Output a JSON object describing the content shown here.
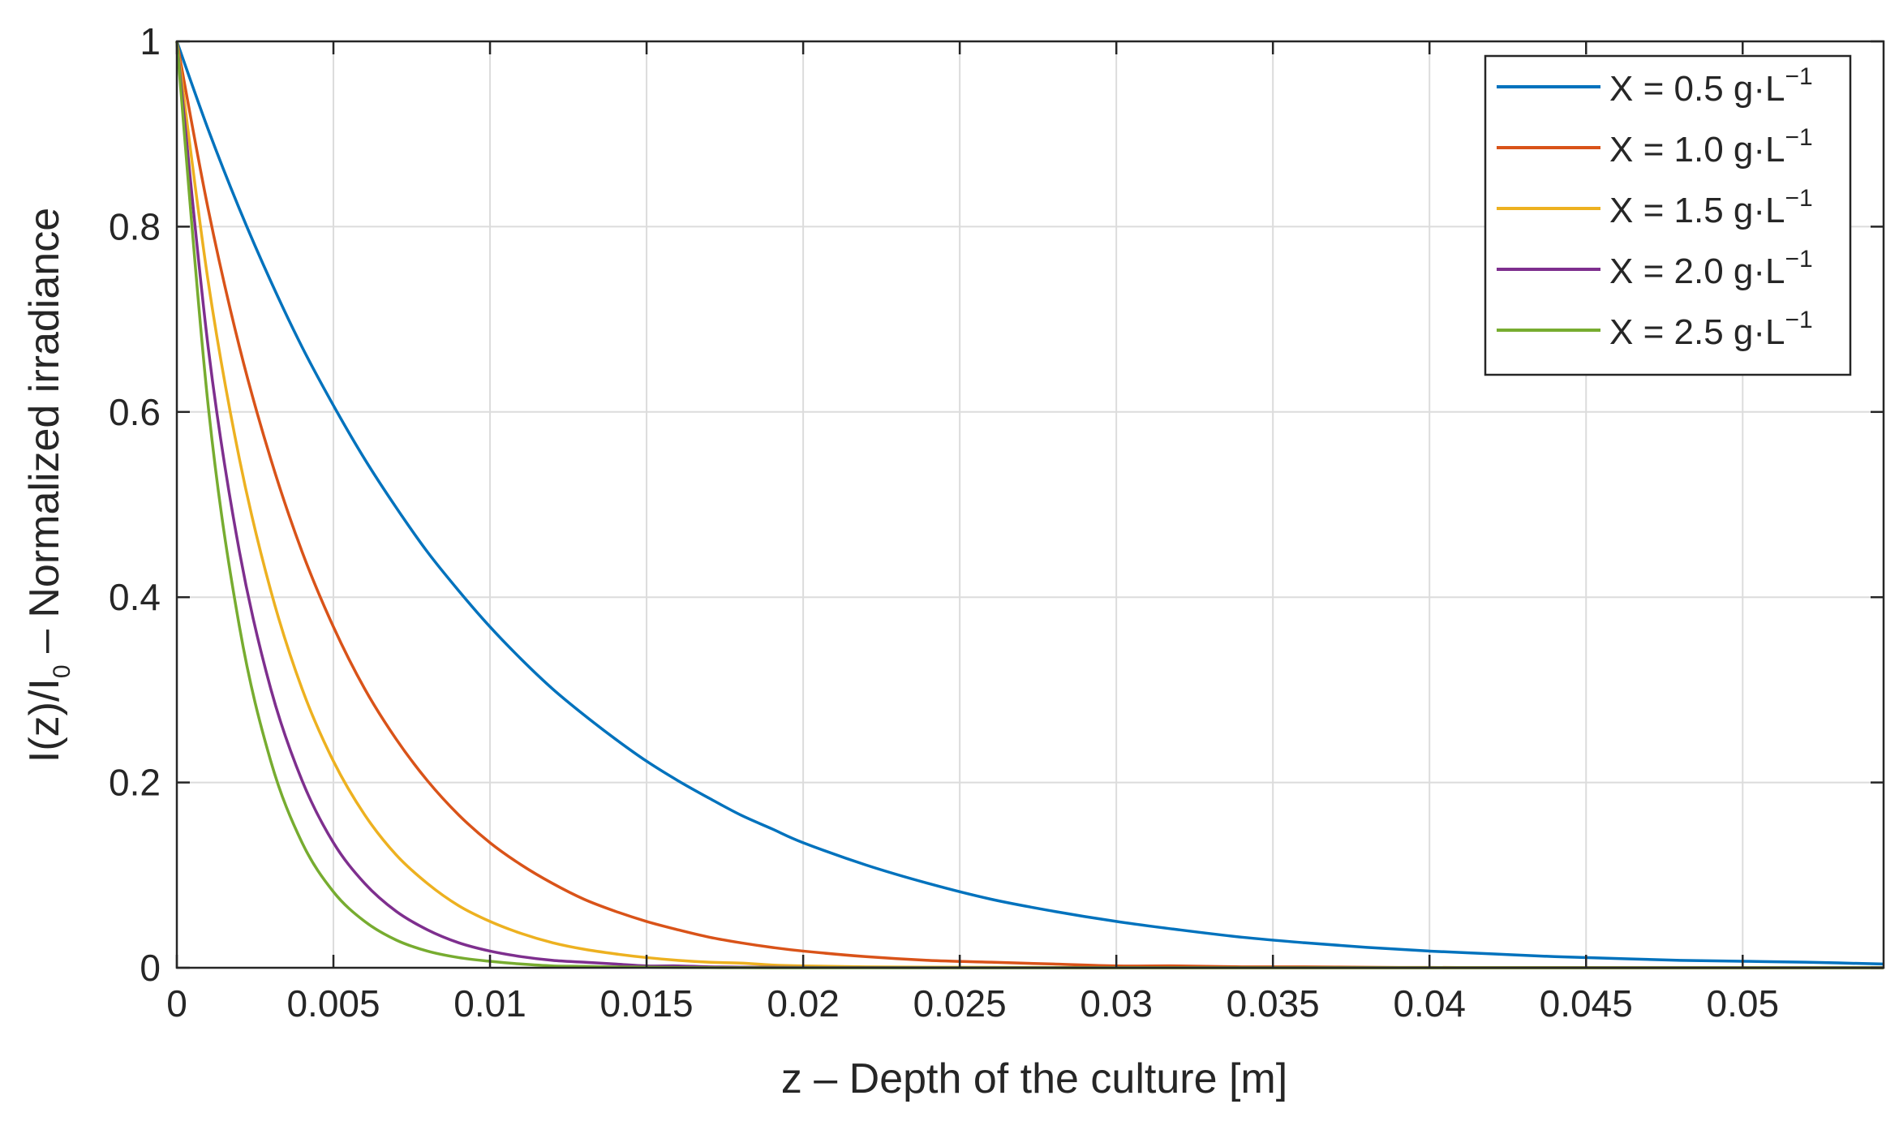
{
  "chart_data": {
    "type": "line",
    "xlabel": "z – Depth of the culture [m]",
    "ylabel_main": "I(z)/I",
    "ylabel_sub": "0",
    "ylabel_rest": " – Normalized irradiance",
    "xlim": [
      0,
      0.0545
    ],
    "ylim": [
      0,
      1
    ],
    "x_ticks": [
      0,
      0.005,
      0.01,
      0.015,
      0.02,
      0.025,
      0.03,
      0.035,
      0.04,
      0.045,
      0.05
    ],
    "x_tick_labels": [
      "0",
      "0.005",
      "0.01",
      "0.015",
      "0.02",
      "0.025",
      "0.03",
      "0.035",
      "0.04",
      "0.045",
      "0.05"
    ],
    "y_ticks": [
      0,
      0.2,
      0.4,
      0.6,
      0.8,
      1
    ],
    "y_tick_labels": [
      "0",
      "0.2",
      "0.4",
      "0.6",
      "0.8",
      "1"
    ],
    "grid": true,
    "legend_position": "top-right",
    "x": [
      0,
      0.001,
      0.002,
      0.003,
      0.004,
      0.005,
      0.006,
      0.007,
      0.008,
      0.009,
      0.01,
      0.011,
      0.012,
      0.013,
      0.014,
      0.015,
      0.016,
      0.017,
      0.018,
      0.019,
      0.02,
      0.022,
      0.024,
      0.026,
      0.028,
      0.03,
      0.032,
      0.034,
      0.036,
      0.038,
      0.04,
      0.042,
      0.044,
      0.046,
      0.048,
      0.05,
      0.052,
      0.0545
    ],
    "series": [
      {
        "name": "X = 0.5 g·L",
        "sup": "−1",
        "color": "#0072BD",
        "values": [
          1,
          0.905,
          0.819,
          0.741,
          0.67,
          0.607,
          0.549,
          0.497,
          0.449,
          0.407,
          0.368,
          0.333,
          0.301,
          0.273,
          0.247,
          0.223,
          0.202,
          0.183,
          0.165,
          0.15,
          0.135,
          0.111,
          0.091,
          0.074,
          0.061,
          0.05,
          0.041,
          0.033,
          0.027,
          0.022,
          0.018,
          0.015,
          0.012,
          0.01,
          0.008,
          0.007,
          0.006,
          0.004
        ]
      },
      {
        "name": "X = 1.0 g·L",
        "sup": "−1",
        "color": "#D95319",
        "values": [
          1,
          0.819,
          0.67,
          0.549,
          0.449,
          0.368,
          0.301,
          0.247,
          0.202,
          0.165,
          0.135,
          0.111,
          0.091,
          0.074,
          0.061,
          0.05,
          0.041,
          0.033,
          0.027,
          0.022,
          0.018,
          0.012,
          0.008,
          0.006,
          0.004,
          0.002,
          0.002,
          0.001,
          0.001,
          0.0005,
          0.0003,
          0.0002,
          0.0002,
          0.0001,
          0,
          0,
          0,
          0
        ]
      },
      {
        "name": "X = 1.5 g·L",
        "sup": "−1",
        "color": "#EDB120",
        "values": [
          1,
          0.741,
          0.549,
          0.407,
          0.301,
          0.223,
          0.165,
          0.122,
          0.091,
          0.067,
          0.05,
          0.037,
          0.027,
          0.02,
          0.015,
          0.011,
          0.008,
          0.006,
          0.005,
          0.003,
          0.002,
          0.001,
          0.0007,
          0.0004,
          0.0002,
          0.0001,
          0,
          0,
          0,
          0,
          0,
          0,
          0,
          0,
          0,
          0,
          0,
          0
        ]
      },
      {
        "name": "X = 2.0 g·L",
        "sup": "−1",
        "color": "#7E2F8E",
        "values": [
          1,
          0.67,
          0.449,
          0.301,
          0.202,
          0.135,
          0.091,
          0.061,
          0.041,
          0.027,
          0.018,
          0.012,
          0.008,
          0.006,
          0.004,
          0.002,
          0.002,
          0.001,
          0.0007,
          0.0005,
          0.0003,
          0.0002,
          0.0001,
          0,
          0,
          0,
          0,
          0,
          0,
          0,
          0,
          0,
          0,
          0,
          0,
          0,
          0,
          0
        ]
      },
      {
        "name": "X = 2.5 g·L",
        "sup": "−1",
        "color": "#77AC30",
        "values": [
          1,
          0.607,
          0.368,
          0.223,
          0.135,
          0.082,
          0.05,
          0.03,
          0.018,
          0.011,
          0.007,
          0.004,
          0.002,
          0.0015,
          0.0009,
          0.0006,
          0.0003,
          0.0002,
          0.0001,
          0,
          0,
          0,
          0,
          0,
          0,
          0,
          0,
          0,
          0,
          0,
          0,
          0,
          0,
          0,
          0,
          0,
          0,
          0
        ]
      }
    ]
  }
}
